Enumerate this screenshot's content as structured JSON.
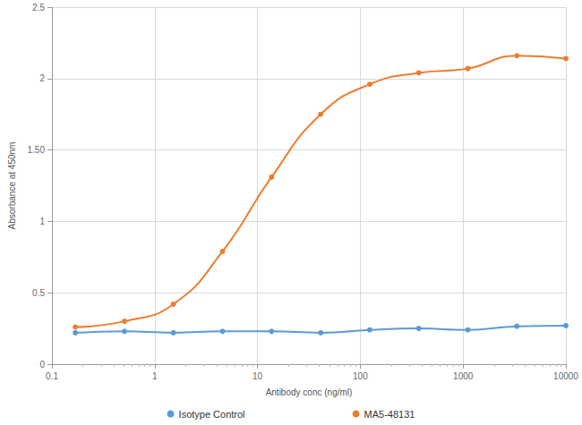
{
  "chart_data": {
    "type": "line",
    "x_label": "Antibody conc (ng/ml)",
    "y_label": "Absorbance at 450nm",
    "x": [
      0.169,
      0.508,
      1.52,
      4.57,
      13.7,
      41.2,
      123.5,
      370.4,
      1111,
      3333,
      10000
    ],
    "series": [
      {
        "name": "Isotype Control",
        "color": "#5b9bd5",
        "values": [
          0.22,
          0.23,
          0.22,
          0.23,
          0.23,
          0.22,
          0.24,
          0.25,
          0.24,
          0.265,
          0.27
        ]
      },
      {
        "name": "MA5-48131",
        "color": "#ed7d31",
        "values": [
          0.26,
          0.3,
          0.42,
          0.79,
          1.31,
          1.75,
          1.96,
          2.04,
          2.07,
          2.16,
          2.14
        ]
      }
    ],
    "xlim": [
      0.1,
      10000
    ],
    "xticks": [
      0.1,
      1,
      10,
      100,
      1000,
      10000
    ],
    "ylim": [
      0,
      2.5
    ],
    "yticks": [
      0,
      0.5,
      1,
      {
        "value": 1.5,
        "label": "1.50"
      },
      2,
      2.5
    ],
    "log": "x",
    "grid": true,
    "legend": "bottom",
    "marker": "circle"
  }
}
